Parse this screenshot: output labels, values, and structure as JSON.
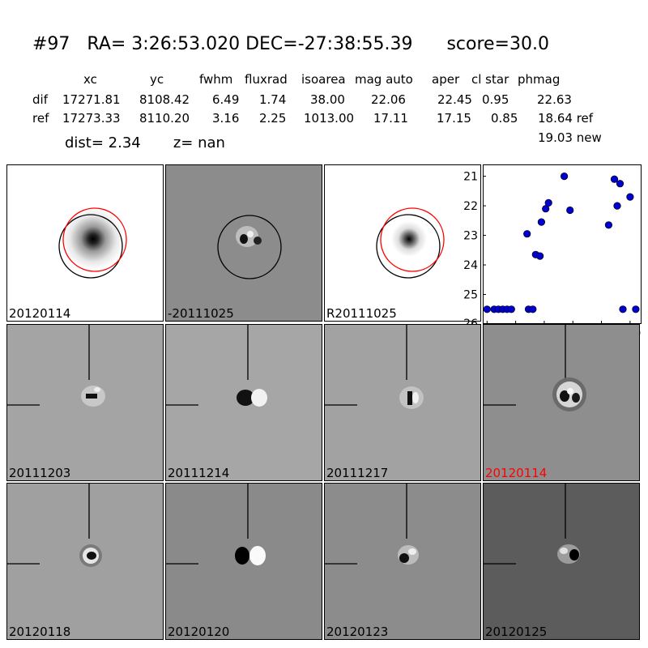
{
  "title": {
    "id": "#97",
    "ra": "RA= 3:26:53.020",
    "dec": "DEC=-27:38:55.39",
    "score": "score=30.0"
  },
  "table": {
    "headers": [
      "xc",
      "yc",
      "fwhm",
      "fluxrad",
      "isoarea",
      "mag auto",
      "aper",
      "cl star",
      "phmag"
    ],
    "rows": [
      {
        "label": "dif",
        "values": [
          "17271.81",
          "8108.42",
          "6.49",
          "1.74",
          "38.00",
          "22.06",
          "22.45",
          "0.95",
          "22.63"
        ]
      },
      {
        "label": "ref",
        "values": [
          "17273.33",
          "8110.20",
          "3.16",
          "2.25",
          "1013.00",
          "17.11",
          "17.15",
          "0.85",
          "18.64 ref"
        ]
      }
    ],
    "extra": "19.03 new"
  },
  "dist": "dist=  2.34",
  "z": "z=   nan",
  "panels": {
    "row1": [
      "20120114",
      "-20111025",
      "R20111025"
    ],
    "row2": [
      "20111203",
      "20111214",
      "20111217",
      "20120114"
    ],
    "row3": [
      "20120118",
      "20120120",
      "20120123",
      "20120125"
    ]
  },
  "colors": {
    "highlight_label": "#ff0000",
    "plot_points": "#0000cc",
    "circle_red": "#ff0000",
    "circle_black": "#000000"
  },
  "chart_data": {
    "type": "scatter",
    "title": "",
    "xlabel": "",
    "ylabel": "",
    "xlim": [
      -3,
      108
    ],
    "ylim": [
      26,
      20.6
    ],
    "y_inverted": true,
    "x_ticks": [
      0,
      20,
      40,
      60,
      80,
      100
    ],
    "y_ticks": [
      21,
      22,
      23,
      24,
      25,
      26
    ],
    "points": [
      [
        0,
        25.5
      ],
      [
        5,
        25.5
      ],
      [
        8,
        25.5
      ],
      [
        11,
        25.5
      ],
      [
        14,
        25.5
      ],
      [
        17,
        25.5
      ],
      [
        28,
        22.95
      ],
      [
        29,
        25.5
      ],
      [
        32,
        25.5
      ],
      [
        34,
        23.65
      ],
      [
        37,
        23.7
      ],
      [
        38,
        22.55
      ],
      [
        41,
        22.1
      ],
      [
        43,
        21.9
      ],
      [
        54,
        21.0
      ],
      [
        58,
        22.15
      ],
      [
        85,
        22.65
      ],
      [
        89,
        21.1
      ],
      [
        91,
        22.0
      ],
      [
        93,
        21.25
      ],
      [
        95,
        25.5
      ],
      [
        100,
        21.7
      ],
      [
        104,
        25.5
      ]
    ]
  }
}
